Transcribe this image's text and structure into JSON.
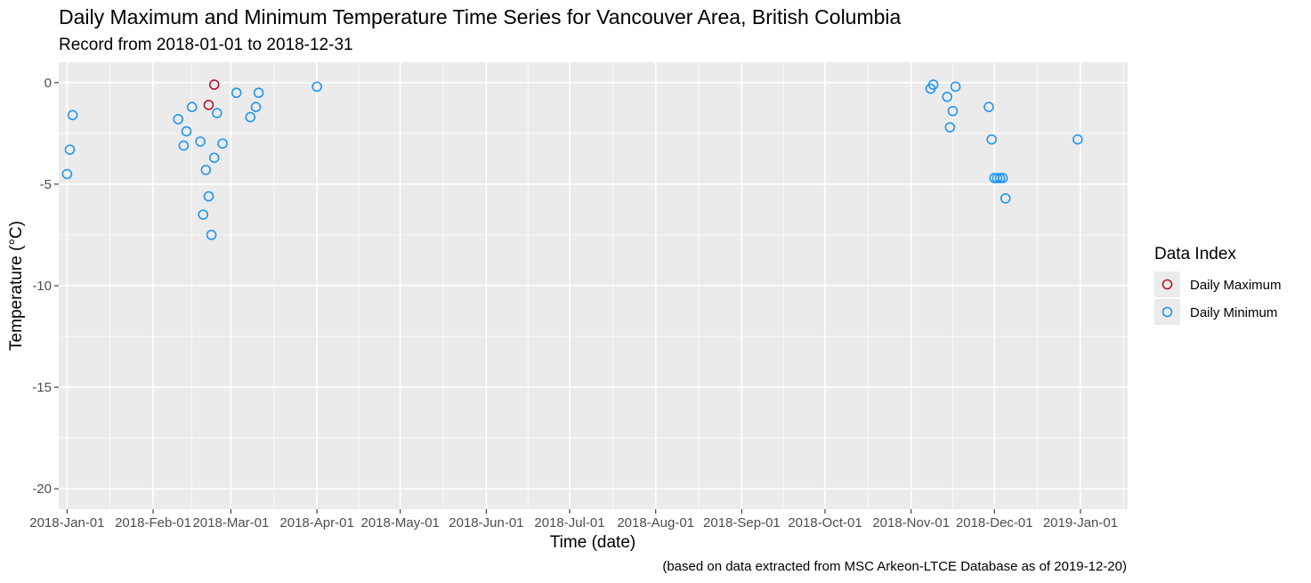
{
  "chart_data": {
    "type": "scatter",
    "title": "Daily Maximum and Minimum Temperature Time Series for Vancouver Area, British Columbia",
    "subtitle": "Record from 2018-01-01 to 2018-12-31",
    "xlabel": "Time (date)",
    "ylabel": "Temperature (°C)",
    "caption": "(based on data extracted from MSC Arkeon-LTCE Database as of 2019-12-20)",
    "legend_title": "Data Index",
    "legend_position": "right",
    "grid": true,
    "xlim": [
      "2017-12-29",
      "2019-01-18"
    ],
    "ylim": [
      -21,
      1
    ],
    "x_ticks": [
      "2018-Jan-01",
      "2018-Feb-01",
      "2018-Mar-01",
      "2018-Apr-01",
      "2018-May-01",
      "2018-Jun-01",
      "2018-Jul-01",
      "2018-Aug-01",
      "2018-Sep-01",
      "2018-Oct-01",
      "2018-Nov-01",
      "2018-Dec-01",
      "2019-Jan-01"
    ],
    "x_tick_dates": [
      "2018-01-01",
      "2018-02-01",
      "2018-03-01",
      "2018-04-01",
      "2018-05-01",
      "2018-06-01",
      "2018-07-01",
      "2018-08-01",
      "2018-09-01",
      "2018-10-01",
      "2018-11-01",
      "2018-12-01",
      "2019-01-01"
    ],
    "y_ticks": [
      0,
      -5,
      -10,
      -15,
      -20
    ],
    "y_tick_labels": [
      "0",
      "-5",
      "-10",
      "-15",
      "-20"
    ],
    "series": [
      {
        "name": "Daily Maximum",
        "color": "#b2182b",
        "points": [
          {
            "x": "2018-02-23",
            "y": -0.1
          },
          {
            "x": "2018-02-21",
            "y": -1.1
          }
        ]
      },
      {
        "name": "Daily Minimum",
        "color": "#2196f3",
        "points": [
          {
            "x": "2018-01-01",
            "y": -4.5
          },
          {
            "x": "2018-01-02",
            "y": -3.3
          },
          {
            "x": "2018-01-03",
            "y": -1.6
          },
          {
            "x": "2018-02-10",
            "y": -1.8
          },
          {
            "x": "2018-02-12",
            "y": -3.1
          },
          {
            "x": "2018-02-13",
            "y": -2.4
          },
          {
            "x": "2018-02-15",
            "y": -1.2
          },
          {
            "x": "2018-02-18",
            "y": -2.9
          },
          {
            "x": "2018-02-19",
            "y": -6.5
          },
          {
            "x": "2018-02-20",
            "y": -4.3
          },
          {
            "x": "2018-02-21",
            "y": -5.6
          },
          {
            "x": "2018-02-22",
            "y": -7.5
          },
          {
            "x": "2018-02-23",
            "y": -3.7
          },
          {
            "x": "2018-02-24",
            "y": -1.5
          },
          {
            "x": "2018-02-26",
            "y": -3.0
          },
          {
            "x": "2018-03-03",
            "y": -0.5
          },
          {
            "x": "2018-03-08",
            "y": -1.7
          },
          {
            "x": "2018-03-10",
            "y": -1.2
          },
          {
            "x": "2018-03-11",
            "y": -0.5
          },
          {
            "x": "2018-04-01",
            "y": -0.2
          },
          {
            "x": "2018-11-08",
            "y": -0.3
          },
          {
            "x": "2018-11-09",
            "y": -0.1
          },
          {
            "x": "2018-11-14",
            "y": -0.7
          },
          {
            "x": "2018-11-15",
            "y": -2.2
          },
          {
            "x": "2018-11-16",
            "y": -1.4
          },
          {
            "x": "2018-11-17",
            "y": -0.2
          },
          {
            "x": "2018-11-29",
            "y": -1.2
          },
          {
            "x": "2018-11-30",
            "y": -2.8
          },
          {
            "x": "2018-12-01",
            "y": -4.7
          },
          {
            "x": "2018-12-02",
            "y": -4.7
          },
          {
            "x": "2018-12-03",
            "y": -4.7
          },
          {
            "x": "2018-12-04",
            "y": -4.7
          },
          {
            "x": "2018-12-05",
            "y": -5.7
          },
          {
            "x": "2018-12-31",
            "y": -2.8
          }
        ]
      }
    ]
  }
}
